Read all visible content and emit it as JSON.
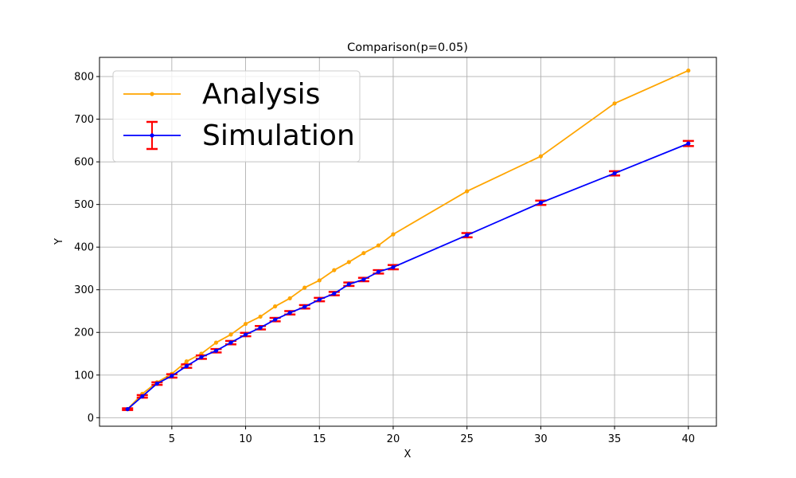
{
  "chart_data": {
    "type": "line",
    "title": "Comparison(p=0.05)",
    "xlabel": "X",
    "ylabel": "Y",
    "xlim": [
      0.1,
      41.9
    ],
    "ylim": [
      -20,
      845
    ],
    "xticks": [
      5,
      10,
      15,
      20,
      25,
      30,
      35,
      40
    ],
    "yticks": [
      0,
      100,
      200,
      300,
      400,
      500,
      600,
      700,
      800
    ],
    "grid": true,
    "legend_position": "upper-left",
    "series": [
      {
        "name": "Analysis",
        "color": "#ffa500",
        "marker": "dot",
        "x": [
          2,
          3,
          4,
          5,
          6,
          7,
          8,
          9,
          10,
          11,
          12,
          13,
          14,
          15,
          16,
          17,
          18,
          19,
          20,
          25,
          30,
          35,
          40
        ],
        "y": [
          20,
          56,
          83,
          103,
          132,
          150,
          176,
          195,
          220,
          237,
          261,
          280,
          305,
          322,
          346,
          365,
          386,
          404,
          430,
          531,
          613,
          737,
          814
        ]
      },
      {
        "name": "Simulation",
        "color": "#0000ff",
        "marker": "dot",
        "errorbar_color": "#ff0000",
        "x": [
          2,
          3,
          4,
          5,
          6,
          7,
          8,
          9,
          10,
          11,
          12,
          13,
          14,
          15,
          16,
          17,
          18,
          19,
          20,
          25,
          30,
          35,
          40
        ],
        "y": [
          20,
          50,
          80,
          98,
          121,
          142,
          157,
          176,
          195,
          211,
          230,
          246,
          260,
          277,
          291,
          313,
          324,
          342,
          353,
          428,
          504,
          573,
          643
        ],
        "error": [
          2,
          3,
          3,
          4,
          4,
          4,
          4,
          4,
          4,
          4,
          4,
          4,
          4,
          4,
          4,
          4,
          4,
          4,
          5,
          5,
          5,
          5,
          6
        ]
      }
    ]
  }
}
